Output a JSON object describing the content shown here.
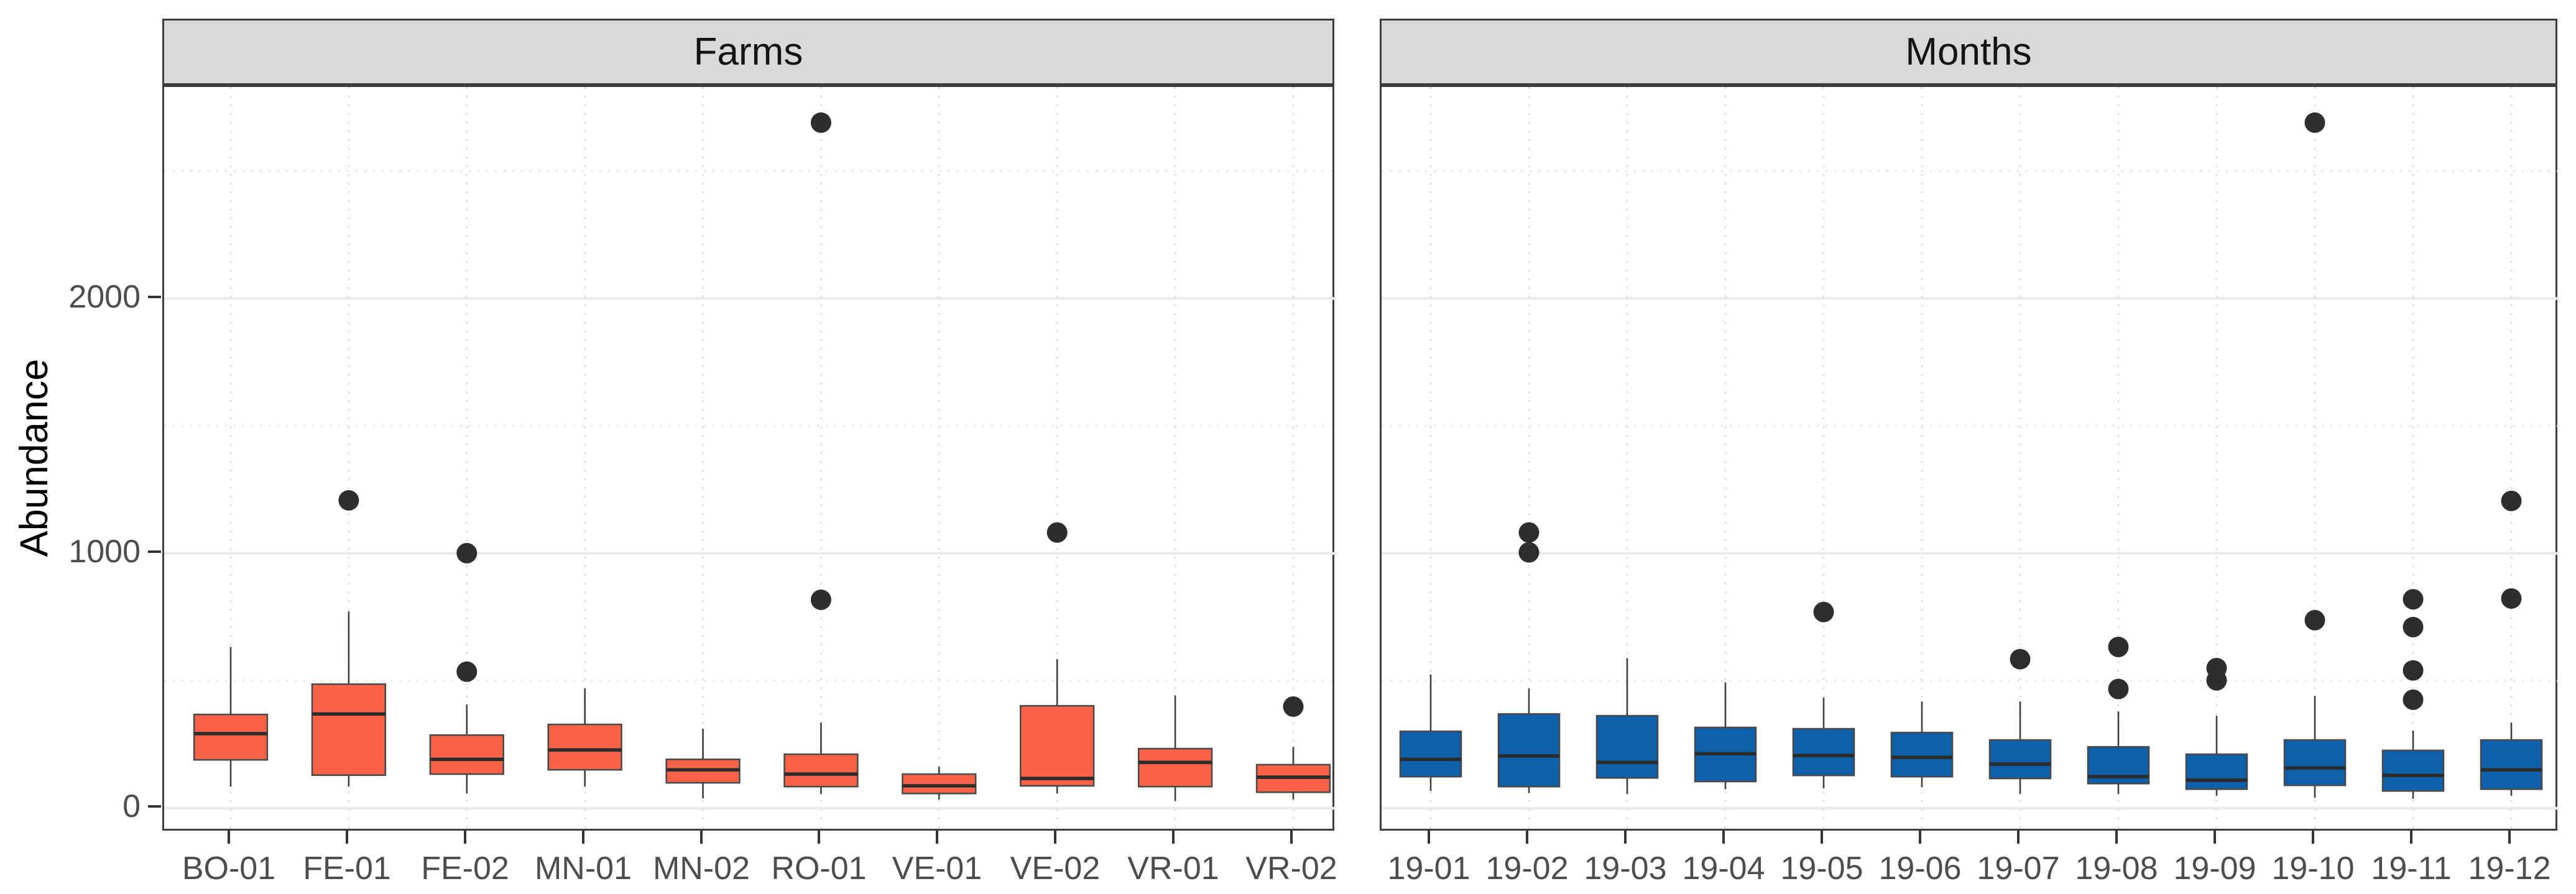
{
  "chart_data": {
    "type": "boxplot",
    "title": "",
    "ylabel": "Abundance",
    "xlabel": "",
    "ylim": [
      -95,
      2830
    ],
    "grid": "on",
    "legend": "none",
    "y_ticks": {
      "values": [
        0,
        1000,
        2000
      ],
      "labels": [
        "0",
        "1000",
        "2000"
      ]
    },
    "y_major_gridlines": [
      0,
      1000,
      2000
    ],
    "y_minor_gridlines": [
      500,
      1500,
      2500
    ],
    "facets": [
      {
        "title": "Farms",
        "box_color": "#FB6348",
        "categories": [
          "BO-01",
          "FE-01",
          "FE-02",
          "MN-01",
          "MN-02",
          "RO-01",
          "VE-01",
          "VE-02",
          "VR-01",
          "VR-02"
        ],
        "boxes": [
          {
            "label": "BO-01",
            "low": 85,
            "q1": 190,
            "median": 293,
            "q3": 368,
            "high": 633,
            "outliers": []
          },
          {
            "label": "FE-01",
            "low": 85,
            "q1": 130,
            "median": 370,
            "q3": 487,
            "high": 772,
            "outliers": [
              1208
            ]
          },
          {
            "label": "FE-02",
            "low": 58,
            "q1": 134,
            "median": 192,
            "q3": 287,
            "high": 407,
            "outliers": [
              1001,
              536
            ]
          },
          {
            "label": "MN-01",
            "low": 85,
            "q1": 151,
            "median": 229,
            "q3": 329,
            "high": 470,
            "outliers": []
          },
          {
            "label": "MN-02",
            "low": 39,
            "q1": 100,
            "median": 151,
            "q3": 192,
            "high": 312,
            "outliers": []
          },
          {
            "label": "RO-01",
            "low": 56,
            "q1": 85,
            "median": 134,
            "q3": 212,
            "high": 336,
            "outliers": [
              2690,
              818
            ]
          },
          {
            "label": "VE-01",
            "low": 34,
            "q1": 58,
            "median": 88,
            "q3": 134,
            "high": 163,
            "outliers": []
          },
          {
            "label": "VE-02",
            "low": 58,
            "q1": 88,
            "median": 117,
            "q3": 402,
            "high": 585,
            "outliers": [
              1082
            ]
          },
          {
            "label": "VR-01",
            "low": 29,
            "q1": 85,
            "median": 180,
            "q3": 234,
            "high": 443,
            "outliers": []
          },
          {
            "label": "VR-02",
            "low": 34,
            "q1": 63,
            "median": 122,
            "q3": 171,
            "high": 241,
            "outliers": [
              399
            ]
          }
        ]
      },
      {
        "title": "Months",
        "box_color": "#0E60AB",
        "categories": [
          "19-01",
          "19-02",
          "19-03",
          "19-04",
          "19-05",
          "19-06",
          "19-07",
          "19-08",
          "19-09",
          "19-10",
          "19-11",
          "19-12"
        ],
        "boxes": [
          {
            "label": "19-01",
            "low": 68,
            "q1": 124,
            "median": 192,
            "q3": 302,
            "high": 524,
            "outliers": []
          },
          {
            "label": "19-02",
            "low": 60,
            "q1": 85,
            "median": 205,
            "q3": 370,
            "high": 470,
            "outliers": [
              1082,
              1004
            ]
          },
          {
            "label": "19-03",
            "low": 56,
            "q1": 119,
            "median": 180,
            "q3": 363,
            "high": 589,
            "outliers": []
          },
          {
            "label": "19-04",
            "low": 75,
            "q1": 105,
            "median": 214,
            "q3": 317,
            "high": 494,
            "outliers": []
          },
          {
            "label": "19-05",
            "low": 78,
            "q1": 129,
            "median": 207,
            "q3": 312,
            "high": 434,
            "outliers": [
              770
            ]
          },
          {
            "label": "19-06",
            "low": 83,
            "q1": 124,
            "median": 200,
            "q3": 297,
            "high": 419,
            "outliers": []
          },
          {
            "label": "19-07",
            "low": 56,
            "q1": 117,
            "median": 173,
            "q3": 268,
            "high": 419,
            "outliers": [
              585
            ]
          },
          {
            "label": "19-08",
            "low": 56,
            "q1": 97,
            "median": 124,
            "q3": 241,
            "high": 380,
            "outliers": [
              633,
              468
            ]
          },
          {
            "label": "19-09",
            "low": 49,
            "q1": 75,
            "median": 110,
            "q3": 212,
            "high": 363,
            "outliers": [
              550,
              502
            ]
          },
          {
            "label": "19-10",
            "low": 41,
            "q1": 90,
            "median": 158,
            "q3": 268,
            "high": 441,
            "outliers": [
              2690,
              738
            ]
          },
          {
            "label": "19-11",
            "low": 37,
            "q1": 68,
            "median": 129,
            "q3": 227,
            "high": 305,
            "outliers": [
              820,
              711,
              541,
              426
            ]
          },
          {
            "label": "19-12",
            "low": 49,
            "q1": 75,
            "median": 151,
            "q3": 268,
            "high": 336,
            "outliers": [
              1206,
              823
            ]
          }
        ]
      }
    ]
  },
  "colors": {
    "strip_fill": "#d9d9d9",
    "strip_text": "#141414",
    "panel_border": "#3c3c3c",
    "axis_text": "#4d4d4d",
    "axis_title": "#000000",
    "grid_major": "#ebebeb",
    "grid_minor": "#e6e6e6",
    "grid_vertical": "#dddddd",
    "box_stroke": "#4a4a4a",
    "median_stroke": "#2b2b2b",
    "whisker_stroke": "#3f3f3f",
    "outlier_fill": "#2e2e2e",
    "farms_fill": "#FB6348",
    "months_fill": "#0E60AB"
  }
}
